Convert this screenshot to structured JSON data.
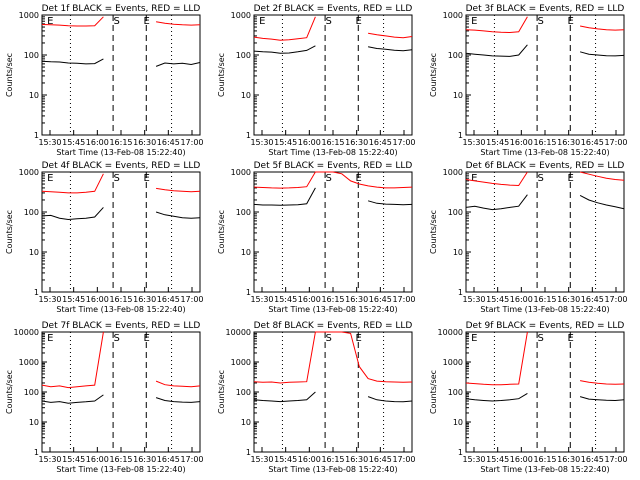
{
  "chart_data": [
    {
      "type": "line",
      "title": "Det 1f BLACK = Events, RED = LLD",
      "ylabel": "Counts/sec",
      "xlabel": "Start Time (13-Feb-08 15:22:40)",
      "x_ticks": [
        "15:30",
        "15:45",
        "16:00",
        "16:15",
        "16:30",
        "16:45",
        "17:00"
      ],
      "y_ticks": [
        "1",
        "10",
        "100",
        "1000"
      ],
      "ylim": [
        1,
        1000
      ],
      "log_y": true,
      "markers": [
        "E",
        "S",
        "E"
      ],
      "series": [
        {
          "name": "LLD",
          "color": "#ff0000",
          "values": [
            580,
            570,
            560,
            540,
            530,
            530,
            540,
            900,
            null,
            null,
            null,
            null,
            null,
            680,
            620,
            590,
            570,
            560,
            570
          ]
        },
        {
          "name": "Events",
          "color": "#000000",
          "values": [
            70,
            68,
            67,
            63,
            62,
            60,
            61,
            80,
            null,
            null,
            null,
            null,
            null,
            52,
            63,
            60,
            62,
            58,
            65
          ]
        }
      ]
    },
    {
      "type": "line",
      "title": "Det 2f BLACK = Events, RED = LLD",
      "ylabel": "Counts/sec",
      "xlabel": "Start Time (13-Feb-08 15:22:40)",
      "x_ticks": [
        "15:30",
        "15:45",
        "16:00",
        "16:15",
        "16:30",
        "16:45",
        "17:00"
      ],
      "y_ticks": [
        "1",
        "10",
        "100",
        "1000"
      ],
      "ylim": [
        1,
        1000
      ],
      "log_y": true,
      "markers": [
        "E",
        "S",
        "E"
      ],
      "series": [
        {
          "name": "LLD",
          "color": "#ff0000",
          "values": [
            280,
            260,
            250,
            235,
            240,
            255,
            270,
            900,
            null,
            null,
            null,
            null,
            null,
            350,
            320,
            300,
            280,
            270,
            290
          ]
        },
        {
          "name": "Events",
          "color": "#000000",
          "values": [
            125,
            120,
            118,
            110,
            112,
            120,
            130,
            170,
            null,
            null,
            null,
            null,
            null,
            160,
            145,
            140,
            132,
            128,
            135
          ]
        }
      ]
    },
    {
      "type": "line",
      "title": "Det 3f BLACK = Events, RED = LLD",
      "ylabel": "Counts/sec",
      "xlabel": "Start Time (13-Feb-08 15:22:40)",
      "x_ticks": [
        "15:30",
        "15:45",
        "16:00",
        "16:15",
        "16:30",
        "16:45",
        "17:00"
      ],
      "y_ticks": [
        "1",
        "10",
        "100",
        "1000"
      ],
      "ylim": [
        1,
        1000
      ],
      "log_y": true,
      "markers": [
        "E",
        "S",
        "E"
      ],
      "series": [
        {
          "name": "LLD",
          "color": "#ff0000",
          "values": [
            430,
            420,
            400,
            380,
            370,
            365,
            380,
            900,
            null,
            null,
            null,
            null,
            null,
            530,
            480,
            450,
            430,
            420,
            430
          ]
        },
        {
          "name": "Events",
          "color": "#000000",
          "values": [
            110,
            105,
            100,
            95,
            94,
            92,
            100,
            180,
            null,
            null,
            null,
            null,
            null,
            120,
            105,
            100,
            96,
            95,
            98
          ]
        }
      ]
    },
    {
      "type": "line",
      "title": "Det 4f BLACK = Events, RED = LLD",
      "ylabel": "Counts/sec",
      "xlabel": "Start Time (13-Feb-08 15:22:40)",
      "x_ticks": [
        "15:30",
        "15:45",
        "16:00",
        "16:15",
        "16:30",
        "16:45",
        "17:00"
      ],
      "y_ticks": [
        "1",
        "10",
        "100",
        "1000"
      ],
      "ylim": [
        1,
        1000
      ],
      "log_y": true,
      "markers": [
        "E",
        "S",
        "E"
      ],
      "series": [
        {
          "name": "LLD",
          "color": "#ff0000",
          "values": [
            330,
            320,
            310,
            300,
            300,
            310,
            330,
            900,
            null,
            null,
            null,
            null,
            null,
            390,
            360,
            340,
            330,
            320,
            330
          ]
        },
        {
          "name": "Events",
          "color": "#000000",
          "values": [
            80,
            82,
            70,
            65,
            68,
            70,
            75,
            130,
            null,
            null,
            null,
            null,
            null,
            100,
            85,
            78,
            72,
            70,
            72
          ]
        }
      ]
    },
    {
      "type": "line",
      "title": "Det 5f BLACK = Events, RED = LLD",
      "ylabel": "Counts/sec",
      "xlabel": "Start Time (13-Feb-08 15:22:40)",
      "x_ticks": [
        "15:30",
        "15:45",
        "16:00",
        "16:15",
        "16:30",
        "16:45",
        "17:00"
      ],
      "y_ticks": [
        "1",
        "10",
        "100",
        "1000"
      ],
      "ylim": [
        1,
        1000
      ],
      "log_y": true,
      "markers": [
        "S",
        "E"
      ],
      "series": [
        {
          "name": "LLD",
          "color": "#ff0000",
          "values": [
            420,
            410,
            400,
            395,
            400,
            410,
            430,
            1000,
            1000,
            1000,
            900,
            600,
            500,
            450,
            420,
            400,
            400,
            410,
            420
          ]
        },
        {
          "name": "Events",
          "color": "#000000",
          "values": [
            155,
            150,
            150,
            148,
            150,
            152,
            160,
            400,
            null,
            null,
            null,
            null,
            null,
            190,
            165,
            158,
            155,
            152,
            155
          ]
        }
      ]
    },
    {
      "type": "line",
      "title": "Det 6f BLACK = Events, RED = LLD",
      "ylabel": "Counts/sec",
      "xlabel": "Start Time (13-Feb-08 15:22:40)",
      "x_ticks": [
        "15:30",
        "15:45",
        "16:00",
        "16:15",
        "16:30",
        "16:45",
        "17:00"
      ],
      "y_ticks": [
        "1",
        "10",
        "100",
        "1000"
      ],
      "ylim": [
        1,
        1000
      ],
      "log_y": true,
      "markers": [
        "E",
        "S",
        "E"
      ],
      "series": [
        {
          "name": "LLD",
          "color": "#ff0000",
          "values": [
            650,
            600,
            560,
            520,
            490,
            470,
            460,
            1000,
            null,
            null,
            null,
            null,
            null,
            1000,
            880,
            780,
            700,
            650,
            620
          ]
        },
        {
          "name": "Events",
          "color": "#000000",
          "values": [
            130,
            140,
            125,
            115,
            120,
            130,
            140,
            270,
            null,
            null,
            null,
            null,
            null,
            260,
            200,
            170,
            150,
            135,
            120
          ]
        }
      ]
    },
    {
      "type": "line",
      "title": "Det 7f BLACK = Events, RED = LLD",
      "ylabel": "Counts/sec",
      "xlabel": "Start Time (13-Feb-08 15:22:40)",
      "x_ticks": [
        "15:30",
        "15:45",
        "16:00",
        "16:15",
        "16:30",
        "16:45",
        "17:00"
      ],
      "y_ticks": [
        "1",
        "10",
        "100",
        "1000",
        "10000"
      ],
      "ylim": [
        1,
        10000
      ],
      "log_y": true,
      "markers": [
        "E",
        "S",
        "E"
      ],
      "series": [
        {
          "name": "LLD",
          "color": "#ff0000",
          "values": [
            170,
            150,
            160,
            140,
            150,
            160,
            170,
            10000,
            null,
            null,
            null,
            null,
            null,
            230,
            175,
            160,
            155,
            150,
            160
          ]
        },
        {
          "name": "Events",
          "color": "#000000",
          "values": [
            50,
            45,
            48,
            42,
            45,
            47,
            50,
            80,
            null,
            null,
            null,
            null,
            null,
            65,
            52,
            48,
            46,
            45,
            48
          ]
        }
      ]
    },
    {
      "type": "line",
      "title": "Det 8f BLACK = Events, RED = LLD",
      "ylabel": "Counts/sec",
      "xlabel": "Start Time (13-Feb-08 15:22:40)",
      "x_ticks": [
        "15:30",
        "15:45",
        "16:00",
        "16:15",
        "16:30",
        "16:45",
        "17:00"
      ],
      "y_ticks": [
        "1",
        "10",
        "100",
        "1000",
        "10000"
      ],
      "ylim": [
        1,
        10000
      ],
      "log_y": true,
      "markers": [
        "S",
        "E"
      ],
      "series": [
        {
          "name": "LLD",
          "color": "#ff0000",
          "values": [
            220,
            210,
            215,
            200,
            210,
            215,
            220,
            10000,
            10000,
            10000,
            10000,
            9000,
            700,
            280,
            230,
            220,
            215,
            210,
            215
          ]
        },
        {
          "name": "Events",
          "color": "#000000",
          "values": [
            55,
            52,
            50,
            48,
            50,
            52,
            55,
            100,
            null,
            null,
            null,
            null,
            null,
            70,
            55,
            50,
            48,
            47,
            50
          ]
        }
      ]
    },
    {
      "type": "line",
      "title": "Det 9f BLACK = Events, RED = LLD",
      "ylabel": "Counts/sec",
      "xlabel": "Start Time (13-Feb-08 15:22:40)",
      "x_ticks": [
        "15:30",
        "15:45",
        "16:00",
        "16:15",
        "16:30",
        "16:45",
        "17:00"
      ],
      "y_ticks": [
        "1",
        "10",
        "100",
        "1000",
        "10000"
      ],
      "ylim": [
        1,
        10000
      ],
      "log_y": true,
      "markers": [
        "E",
        "S",
        "E"
      ],
      "series": [
        {
          "name": "LLD",
          "color": "#ff0000",
          "values": [
            200,
            190,
            180,
            175,
            175,
            180,
            185,
            10000,
            null,
            null,
            null,
            null,
            null,
            240,
            210,
            195,
            185,
            180,
            185
          ]
        },
        {
          "name": "Events",
          "color": "#000000",
          "values": [
            60,
            55,
            52,
            50,
            52,
            55,
            60,
            90,
            null,
            null,
            null,
            null,
            null,
            70,
            58,
            55,
            53,
            52,
            55
          ]
        }
      ]
    }
  ]
}
